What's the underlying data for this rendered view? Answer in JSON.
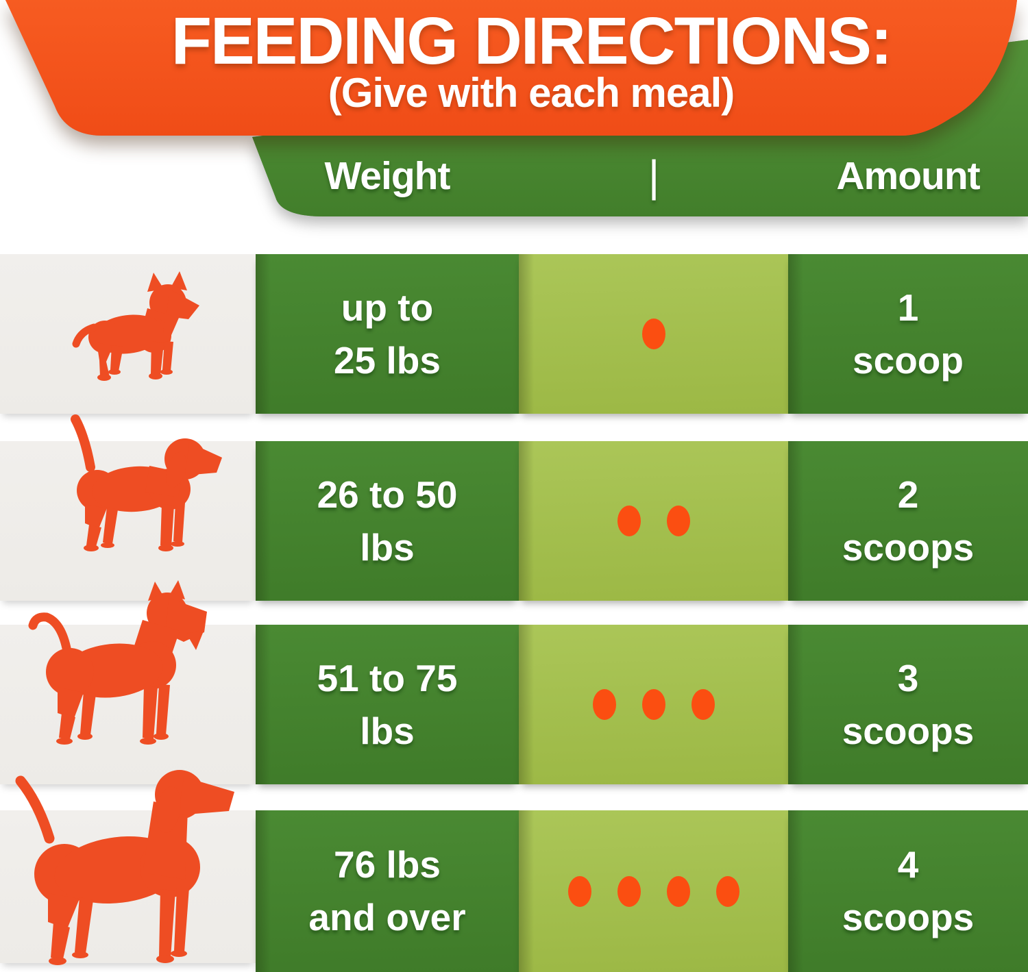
{
  "banner": {
    "title": "FEEDING DIRECTIONS:",
    "subtitle": "(Give with each meal)"
  },
  "header": {
    "weight_label": "Weight",
    "divider": "|",
    "amount_label": "Amount"
  },
  "rows": [
    {
      "dog": "x-small-dog-silhouette",
      "weight": "up to\n25 lbs",
      "scoops": 1,
      "amount": "1\nscoop"
    },
    {
      "dog": "small-dog-silhouette",
      "weight": "26 to 50\nlbs",
      "scoops": 2,
      "amount": "2\nscoops"
    },
    {
      "dog": "medium-dog-silhouette",
      "weight": "51 to 75\nlbs",
      "scoops": 3,
      "amount": "3\nscoops"
    },
    {
      "dog": "large-dog-silhouette",
      "weight": "76 lbs\nand over",
      "scoops": 4,
      "amount": "4\nscoops"
    }
  ],
  "chart_data": {
    "type": "table",
    "title": "FEEDING DIRECTIONS:",
    "subtitle": "(Give with each meal)",
    "columns": [
      "Weight",
      "Amount"
    ],
    "rows": [
      {
        "weight": "up to 25 lbs",
        "scoops": 1,
        "amount": "1 scoop"
      },
      {
        "weight": "26 to 50 lbs",
        "scoops": 2,
        "amount": "2 scoops"
      },
      {
        "weight": "51 to 75 lbs",
        "scoops": 3,
        "amount": "3 scoops"
      },
      {
        "weight": "76 lbs and over",
        "scoops": 4,
        "amount": "4 scoops"
      }
    ]
  },
  "colors": {
    "banner_orange": "#F5531D",
    "header_green": "#4B8A31",
    "cell_dark_green": "#44812C",
    "cell_light_green": "#A5C050",
    "row_gray": "#F0EEEA",
    "dog_orange": "#EE4D23",
    "dot_orange": "#FB4E11",
    "text_white": "#FFFFFF"
  }
}
